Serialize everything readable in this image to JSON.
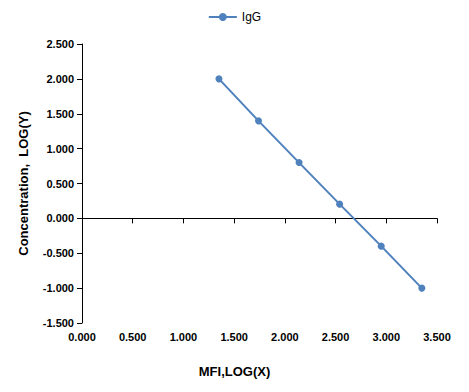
{
  "chart_data": {
    "type": "line",
    "xlabel": "MFI,LOG(X)",
    "ylabel": "Concentration,  LOG(Y)",
    "series": [
      {
        "name": "IgG",
        "color": "#4f81bd",
        "marker": "circle",
        "line_style": "solid",
        "x": [
          1.35,
          1.74,
          2.14,
          2.54,
          2.95,
          3.35
        ],
        "values": [
          2.0,
          1.398,
          0.8,
          0.204,
          -0.398,
          -1.0
        ]
      }
    ],
    "xlim": [
      0,
      3.5
    ],
    "xticks": [
      {
        "value": 0,
        "label": "0.000"
      },
      {
        "value": 0.5,
        "label": "0.500"
      },
      {
        "value": 1,
        "label": "1.000"
      },
      {
        "value": 1.5,
        "label": "1.500"
      },
      {
        "value": 2,
        "label": "2.000"
      },
      {
        "value": 2.5,
        "label": "2.500"
      },
      {
        "value": 3,
        "label": "3.000"
      },
      {
        "value": 3.5,
        "label": "3.500"
      }
    ],
    "ylim": [
      -1.5,
      2.5
    ],
    "yticks": [
      {
        "value": -1.5,
        "label": "-1.500"
      },
      {
        "value": -1,
        "label": "-1.000"
      },
      {
        "value": -0.5,
        "label": "-0.500"
      },
      {
        "value": 0,
        "label": "0.000"
      },
      {
        "value": 0.5,
        "label": "0.500"
      },
      {
        "value": 1,
        "label": "1.000"
      },
      {
        "value": 1.5,
        "label": "1.500"
      },
      {
        "value": 2,
        "label": "2.000"
      },
      {
        "value": 2.5,
        "label": "2.500"
      }
    ],
    "grid": false,
    "legend": "top"
  }
}
